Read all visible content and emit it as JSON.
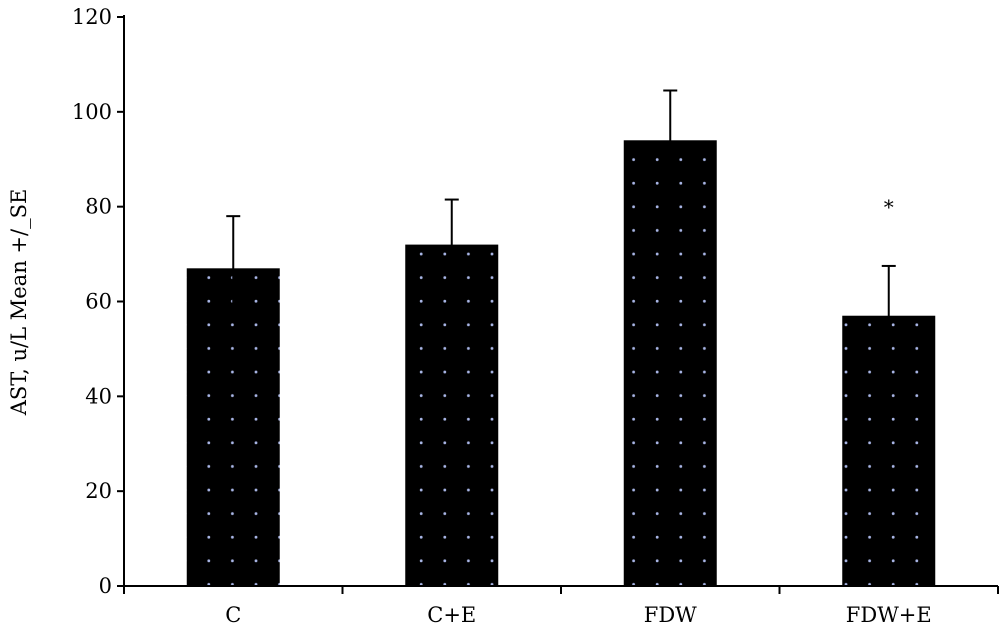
{
  "chart_data": {
    "type": "bar",
    "title": "",
    "xlabel": "",
    "ylabel": "AST, u/L Mean +/_SE",
    "categories": [
      "C",
      "C+E",
      "FDW",
      "FDW+E"
    ],
    "values": [
      67,
      72,
      94,
      57
    ],
    "errors": [
      11,
      9.5,
      10.5,
      10.5
    ],
    "annotations": [
      {
        "category": "FDW+E",
        "text": "*"
      }
    ],
    "ylim": [
      0,
      120
    ],
    "yticks": [
      "0",
      "20",
      "40",
      "60",
      "80",
      "100",
      "120"
    ],
    "grid": false,
    "legend": "none",
    "bar_color": "#000000",
    "bar_dot_color": "#a9b6e6"
  }
}
